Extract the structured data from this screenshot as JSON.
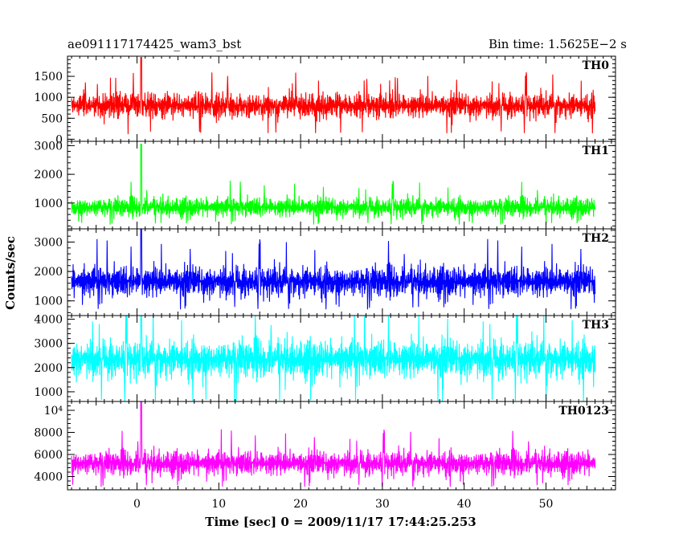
{
  "header": {
    "left": "ae091117174425_wam3_bst",
    "right": "Bin time: 1.5625E−2 s"
  },
  "chart_data": {
    "type": "line",
    "xlabel": "Time [sec] 0 = 2009/11/17 17:44:25.253",
    "ylabel": "Counts/sec",
    "xlim": [
      -8.5,
      58.5
    ],
    "x_data_range": [
      -8,
      56
    ],
    "x_ticks": [
      0,
      10,
      20,
      30,
      40,
      50
    ],
    "x_tick_labels": [
      "0",
      "10",
      "20",
      "30",
      "40",
      "50"
    ],
    "bin_time_s": 0.015625,
    "trigger_time_s": 0.5,
    "panels": [
      {
        "name": "TH0",
        "color": "#ff0000",
        "ylim": [
          -50,
          1980
        ],
        "y_ticks": [
          0,
          500,
          1000,
          1500
        ],
        "y_tick_labels": [
          "0",
          "500",
          "1000",
          "1500"
        ],
        "mean": 800,
        "typical_min": 200,
        "typical_max": 1350,
        "peak": 1950
      },
      {
        "name": "TH1",
        "color": "#00ff00",
        "ylim": [
          100,
          3150
        ],
        "y_ticks": [
          1000,
          2000,
          3000
        ],
        "y_tick_labels": [
          "1000",
          "2000",
          "3000"
        ],
        "mean": 850,
        "typical_min": 320,
        "typical_max": 1650,
        "peak": 3050
      },
      {
        "name": "TH2",
        "color": "#0000ff",
        "ylim": [
          500,
          3450
        ],
        "y_ticks": [
          1000,
          2000,
          3000
        ],
        "y_tick_labels": [
          "1000",
          "2000",
          "3000"
        ],
        "mean": 1650,
        "typical_min": 820,
        "typical_max": 2900,
        "peak": 3450
      },
      {
        "name": "TH3",
        "color": "#00ffff",
        "ylim": [
          600,
          4150
        ],
        "y_ticks": [
          1000,
          2000,
          3000,
          4000
        ],
        "y_tick_labels": [
          "1000",
          "2000",
          "3000",
          "4000"
        ],
        "mean": 2350,
        "typical_min": 700,
        "typical_max": 3800,
        "peak": 4150
      },
      {
        "name": "TH0123",
        "color": "#ff00ff",
        "ylim": [
          2800,
          10800
        ],
        "y_ticks": [
          4000,
          6000,
          8000,
          10000
        ],
        "y_tick_labels": [
          "4000",
          "6000",
          "8000",
          "10⁴"
        ],
        "mean": 5200,
        "typical_min": 3300,
        "typical_max": 7700,
        "peak": 10800
      }
    ]
  }
}
